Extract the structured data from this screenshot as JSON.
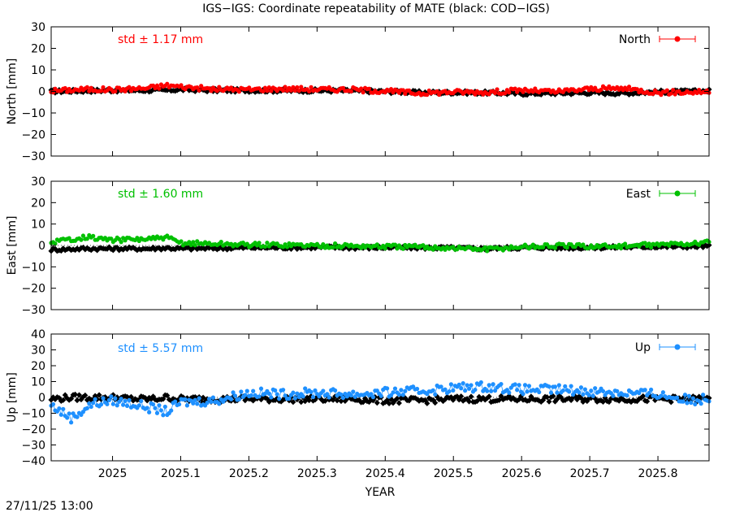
{
  "title": "IGS−IGS: Coordinate repeatability of MATE (black: COD−IGS)",
  "timestamp": "27/11/25 13:00",
  "chart_data": {
    "type": "scatter",
    "xlabel": "YEAR",
    "xlim": [
      2024.91,
      2025.875
    ],
    "xticks": [
      "2025",
      "2025.1",
      "2025.2",
      "2025.3",
      "2025.4",
      "2025.5",
      "2025.6",
      "2025.7",
      "2025.8"
    ],
    "grid": false,
    "legend_placement": "top-right",
    "panels": [
      {
        "id": "north",
        "ylabel": "North [mm]",
        "ylim": [
          -30,
          30
        ],
        "yticks": [
          "30",
          "20",
          "10",
          "0",
          "−10",
          "−20",
          "−30"
        ],
        "legend": "North",
        "std_label": "std ± 1.17 mm",
        "color": "#ff0000",
        "coarse_x": [
          2024.91,
          2024.96,
          2025.0,
          2025.05,
          2025.08,
          2025.1,
          2025.15,
          2025.2,
          2025.25,
          2025.3,
          2025.35,
          2025.4,
          2025.45,
          2025.5,
          2025.55,
          2025.6,
          2025.65,
          2025.7,
          2025.75,
          2025.8,
          2025.85,
          2025.875
        ],
        "series": [
          {
            "name": "IGS",
            "values": [
              0.3,
              1.0,
              0.8,
              1.5,
              2.8,
              2.2,
              1.0,
              0.9,
              1.3,
              1.0,
              0.9,
              0.2,
              -0.8,
              -0.2,
              -0.4,
              0.6,
              -0.2,
              1.2,
              1.4,
              -0.5,
              -0.3,
              0.0
            ]
          },
          {
            "name": "COD",
            "values": [
              0.0,
              0.3,
              0.5,
              0.5,
              0.5,
              0.9,
              0.5,
              0.5,
              0.4,
              0.4,
              0.3,
              0.0,
              -0.5,
              -0.5,
              -0.6,
              -1.0,
              -0.8,
              -0.6,
              -0.8,
              -0.2,
              0.0,
              0.3
            ]
          }
        ]
      },
      {
        "id": "east",
        "ylabel": "East [mm]",
        "ylim": [
          -30,
          30
        ],
        "yticks": [
          "30",
          "20",
          "10",
          "0",
          "−10",
          "−20",
          "−30"
        ],
        "legend": "East",
        "std_label": "std ± 1.60 mm",
        "color": "#00c000",
        "coarse_x": [
          2024.91,
          2024.96,
          2025.0,
          2025.05,
          2025.08,
          2025.1,
          2025.15,
          2025.2,
          2025.25,
          2025.3,
          2025.35,
          2025.4,
          2025.45,
          2025.5,
          2025.55,
          2025.6,
          2025.65,
          2025.7,
          2025.75,
          2025.8,
          2025.85,
          2025.875
        ],
        "series": [
          {
            "name": "IGS",
            "values": [
              1.5,
              4.0,
              2.5,
              3.0,
              3.5,
              1.2,
              0.8,
              0.3,
              0.3,
              0.0,
              -0.2,
              -0.5,
              -0.7,
              -1.2,
              -1.8,
              -0.6,
              -0.2,
              -0.4,
              -0.3,
              0.3,
              1.0,
              1.3
            ]
          },
          {
            "name": "COD",
            "values": [
              -2.0,
              -1.5,
              -1.5,
              -1.5,
              -1.2,
              -1.5,
              -1.3,
              -1.0,
              -1.0,
              -0.8,
              -1.0,
              -1.0,
              -1.0,
              -1.2,
              -1.5,
              -1.0,
              -1.0,
              -1.0,
              -0.8,
              -0.5,
              -0.5,
              -0.3
            ]
          }
        ]
      },
      {
        "id": "up",
        "ylabel": "Up [mm]",
        "ylim": [
          -40,
          40
        ],
        "yticks": [
          "40",
          "30",
          "20",
          "10",
          "0",
          "−10",
          "−20",
          "−30",
          "−40"
        ],
        "legend": "Up",
        "std_label": "std ± 5.57 mm",
        "color": "#1e90ff",
        "coarse_x": [
          2024.91,
          2024.94,
          2024.97,
          2025.0,
          2025.03,
          2025.06,
          2025.08,
          2025.1,
          2025.15,
          2025.2,
          2025.25,
          2025.3,
          2025.35,
          2025.4,
          2025.45,
          2025.5,
          2025.55,
          2025.6,
          2025.65,
          2025.7,
          2025.75,
          2025.8,
          2025.85,
          2025.875
        ],
        "series": [
          {
            "name": "IGS",
            "values": [
              -5,
              -13,
              -4,
              -2,
              -4,
              -7,
              -9,
              -3,
              -2,
              3,
              2,
              3,
              2,
              3,
              4,
              6,
              7,
              5,
              5,
              4,
              3,
              2,
              -2,
              0
            ]
          },
          {
            "name": "COD",
            "values": [
              -1,
              0,
              0,
              0,
              -1,
              -1,
              0,
              -1,
              -1,
              -1,
              -1,
              -1,
              -1,
              -2,
              -2,
              -1,
              -1,
              -1,
              -1,
              -1,
              -1,
              -1,
              -1,
              -1
            ]
          }
        ]
      }
    ]
  }
}
